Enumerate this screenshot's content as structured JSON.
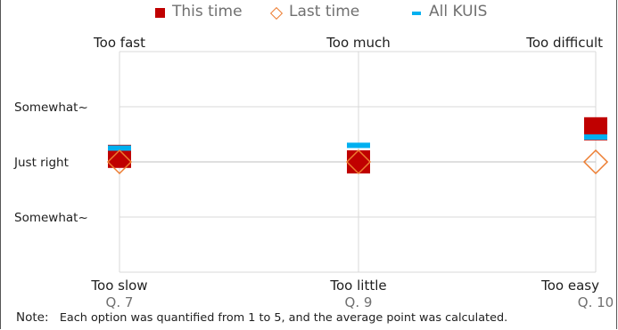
{
  "legend": [
    {
      "label": "This time",
      "color": "#c00000",
      "shape": "square"
    },
    {
      "label": "Last time",
      "color": "#ed7d31",
      "shape": "diamond"
    },
    {
      "label": "All KUIS",
      "color": "#00b0f0",
      "shape": "dash"
    }
  ],
  "note": {
    "label": "Note:",
    "text": "Each option was quantified from 1 to 5, and the average point was calculated."
  },
  "chart_data": {
    "type": "scatter",
    "y_range": [
      1,
      5
    ],
    "y_tick_labels": [
      {
        "value": 4,
        "label": "Somewhat~"
      },
      {
        "value": 3,
        "label": "Just right"
      },
      {
        "value": 2,
        "label": "Somewhat~"
      }
    ],
    "grid": true,
    "legend_position": "top",
    "categories": [
      "Q. 7",
      "Q. 9",
      "Q. 10"
    ],
    "top_labels": [
      "Too fast",
      "Too much",
      "Too difficult"
    ],
    "bottom_labels": [
      "Too slow",
      "Too little",
      "Too easy"
    ],
    "series": [
      {
        "name": "This time",
        "color": "#c00000",
        "values": [
          3.1,
          3.0,
          3.6
        ]
      },
      {
        "name": "Last time",
        "color": "#ed7d31",
        "values": [
          3.0,
          3.0,
          3.0
        ]
      },
      {
        "name": "All KUIS",
        "color": "#00b0f0",
        "values": [
          3.25,
          3.3,
          3.45
        ]
      }
    ]
  }
}
